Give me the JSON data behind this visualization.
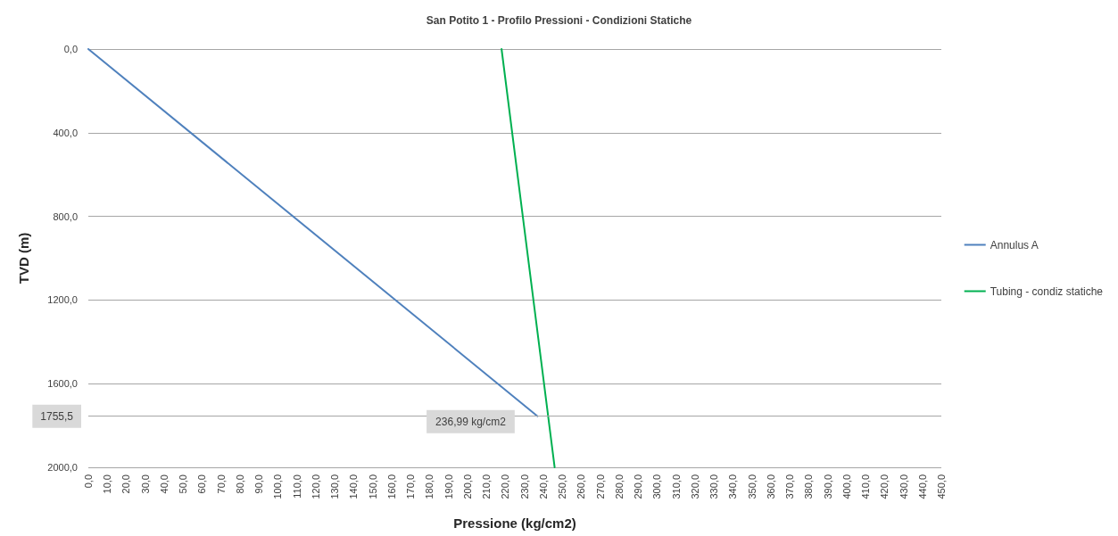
{
  "chart_data": {
    "type": "line",
    "title": "San Potito 1 - Profilo Pressioni - Condizioni Statiche",
    "xlabel": "Pressione (kg/cm2)",
    "ylabel": "TVD (m)",
    "series": [
      {
        "name": "Annulus A",
        "color": "#4f81bd",
        "x": [
          0,
          236.99
        ],
        "values": [
          0,
          1755.5
        ]
      },
      {
        "name": "Tubing - condiz statiche",
        "color": "#00b050",
        "x": [
          218,
          246
        ],
        "values": [
          0,
          2000
        ]
      }
    ],
    "xlim": [
      0,
      450
    ],
    "xticks": [
      {
        "value": 0,
        "label": "0,0"
      },
      {
        "value": 10,
        "label": "10,0"
      },
      {
        "value": 20,
        "label": "20,0"
      },
      {
        "value": 30,
        "label": "30,0"
      },
      {
        "value": 40,
        "label": "40,0"
      },
      {
        "value": 50,
        "label": "50,0"
      },
      {
        "value": 60,
        "label": "60,0"
      },
      {
        "value": 70,
        "label": "70,0"
      },
      {
        "value": 80,
        "label": "80,0"
      },
      {
        "value": 90,
        "label": "90,0"
      },
      {
        "value": 100,
        "label": "100,0"
      },
      {
        "value": 110,
        "label": "110,0"
      },
      {
        "value": 120,
        "label": "120,0"
      },
      {
        "value": 130,
        "label": "130,0"
      },
      {
        "value": 140,
        "label": "140,0"
      },
      {
        "value": 150,
        "label": "150,0"
      },
      {
        "value": 160,
        "label": "160,0"
      },
      {
        "value": 170,
        "label": "170,0"
      },
      {
        "value": 180,
        "label": "180,0"
      },
      {
        "value": 190,
        "label": "190,0"
      },
      {
        "value": 200,
        "label": "200,0"
      },
      {
        "value": 210,
        "label": "210,0"
      },
      {
        "value": 220,
        "label": "220,0"
      },
      {
        "value": 230,
        "label": "230,0"
      },
      {
        "value": 240,
        "label": "240,0"
      },
      {
        "value": 250,
        "label": "250,0"
      },
      {
        "value": 260,
        "label": "260,0"
      },
      {
        "value": 270,
        "label": "270,0"
      },
      {
        "value": 280,
        "label": "280,0"
      },
      {
        "value": 290,
        "label": "290,0"
      },
      {
        "value": 300,
        "label": "300,0"
      },
      {
        "value": 310,
        "label": "310,0"
      },
      {
        "value": 320,
        "label": "320,0"
      },
      {
        "value": 330,
        "label": "330,0"
      },
      {
        "value": 340,
        "label": "340,0"
      },
      {
        "value": 350,
        "label": "350,0"
      },
      {
        "value": 360,
        "label": "360,0"
      },
      {
        "value": 370,
        "label": "370,0"
      },
      {
        "value": 380,
        "label": "380,0"
      },
      {
        "value": 390,
        "label": "390,0"
      },
      {
        "value": 400,
        "label": "400,0"
      },
      {
        "value": 410,
        "label": "410,0"
      },
      {
        "value": 420,
        "label": "420,0"
      },
      {
        "value": 430,
        "label": "430,0"
      },
      {
        "value": 440,
        "label": "440,0"
      },
      {
        "value": 450,
        "label": "450,0"
      }
    ],
    "ylim": [
      2000,
      0
    ],
    "yticks": [
      {
        "value": 0,
        "label": "0,0"
      },
      {
        "value": 400,
        "label": "400,0"
      },
      {
        "value": 800,
        "label": "800,0"
      },
      {
        "value": 1200,
        "label": "1200,0"
      },
      {
        "value": 1600,
        "label": "1600,0"
      },
      {
        "value": 2000,
        "label": "2000,0"
      }
    ],
    "ref_lines": [
      {
        "axis": "y",
        "value": 1755.5,
        "label": "1755,5",
        "color": "#a6a6a6"
      }
    ],
    "annotations": [
      {
        "text": "236,99 kg/cm2",
        "x": 236.99,
        "y": 1755.5
      }
    ],
    "grid": "y",
    "legend": "right",
    "marker": "none",
    "line_style": "solid"
  }
}
